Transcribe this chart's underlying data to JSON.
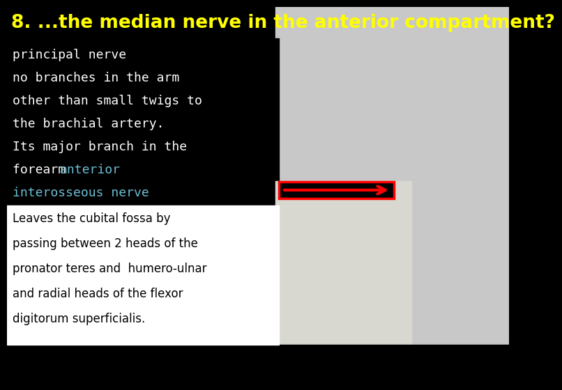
{
  "title": "8. ...the median nerve in the anterior compartment?",
  "title_color": "#FFFF00",
  "title_fontsize": 19,
  "background_color": "#000000",
  "upper_text_lines": [
    "principal nerve",
    "no branches in the arm",
    "other than small twigs to",
    "the brachial artery.",
    "Its major branch in the"
  ],
  "upper_text_color": "#FFFFFF",
  "forearm_prefix": "forearm ",
  "anterior_text": "anterior",
  "interosseous_text": "interosseous nerve",
  "highlight_color": "#6BBFD4",
  "lower_box_bg": "#FFFFFF",
  "lower_text_lines": [
    "Leaves the cubital fossa by",
    "passing between 2 heads of the",
    "pronator teres and  humero-ulnar",
    "and radial heads of the flexor",
    "digitorum superficialis."
  ],
  "lower_text_color": "#000000",
  "arrow_color": "#FF0000",
  "upper_text_fontsize": 13,
  "lower_text_fontsize": 12,
  "mono_fontsize": 13
}
